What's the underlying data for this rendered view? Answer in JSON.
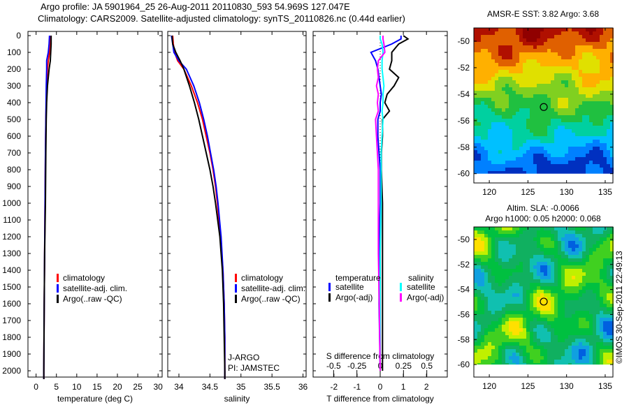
{
  "title_line1": "Argo profile: JA 5901964_25 26-Aug-2011 20110830_593 54.969S 127.047E",
  "title_line2": "Climatology: CARS2009. Satellite-adjusted climatology: synTS_20110826.nc (0.44d earlier)",
  "credit": "©IMOS 30-Sep-2011 22:49:13",
  "colors": {
    "climatology": "#ff0000",
    "satellite": "#0000ff",
    "argo": "#000000",
    "sal_satellite": "#00ffff",
    "sal_argo": "#ff00ff"
  },
  "chart_data": [
    {
      "type": "line",
      "xlabel": "temperature (deg C)",
      "ylabel": "",
      "xlim": [
        -2,
        31
      ],
      "ylim": [
        2050,
        0
      ],
      "xticks": [
        "0",
        "5",
        "10",
        "15",
        "20",
        "25",
        "30"
      ],
      "yticks": [
        "0",
        "100",
        "200",
        "300",
        "400",
        "500",
        "600",
        "700",
        "800",
        "900",
        "1000",
        "1100",
        "1200",
        "1300",
        "1400",
        "1500",
        "1600",
        "1700",
        "1800",
        "1900",
        "2000"
      ],
      "legend": [
        "climatology",
        "satellite-adj. clim.",
        "Argo(..raw -QC)"
      ],
      "depth": [
        0,
        50,
        100,
        150,
        200,
        300,
        400,
        500,
        700,
        1000,
        1300,
        1600,
        2000,
        2050
      ],
      "series": [
        {
          "name": "climatology",
          "values": [
            3.6,
            3.5,
            3.3,
            3.0,
            2.8,
            2.6,
            2.5,
            2.4,
            2.3,
            2.2,
            2.1,
            2.0,
            1.9,
            1.9
          ]
        },
        {
          "name": "satellite-adj. clim.",
          "values": [
            3.3,
            3.2,
            3.0,
            2.6,
            2.6,
            2.5,
            2.45,
            2.4,
            2.3,
            2.2,
            2.1,
            2.0,
            1.9,
            1.9
          ]
        },
        {
          "name": "Argo(..raw -QC)",
          "values": [
            3.7,
            3.7,
            3.6,
            3.5,
            3.2,
            2.8,
            2.6,
            2.5,
            2.4,
            2.3,
            2.1,
            2.0,
            1.9,
            1.9
          ]
        }
      ]
    },
    {
      "type": "line",
      "xlabel": "salinity",
      "xlim": [
        33.82,
        36.05
      ],
      "ylim": [
        2050,
        0
      ],
      "xticks": [
        "34",
        "34.5",
        "35",
        "35.5",
        "36"
      ],
      "legend": [
        "climatology",
        "satellite-adj. clim.",
        "Argo(..raw -QC)"
      ],
      "annotations": [
        "J-ARGO",
        "PI: JAMSTEC"
      ],
      "depth": [
        0,
        50,
        100,
        150,
        200,
        300,
        400,
        500,
        600,
        700,
        800,
        900,
        1000,
        1200,
        1400,
        1600,
        1800,
        2000,
        2050
      ],
      "series": [
        {
          "name": "climatology",
          "values": [
            33.9,
            33.91,
            33.93,
            33.98,
            34.08,
            34.2,
            34.3,
            34.38,
            34.44,
            34.5,
            34.55,
            34.59,
            34.62,
            34.67,
            34.71,
            34.73,
            34.74,
            34.74,
            34.74
          ]
        },
        {
          "name": "satellite-adj. clim.",
          "values": [
            33.88,
            33.9,
            33.92,
            34.0,
            34.12,
            34.24,
            34.33,
            34.4,
            34.46,
            34.51,
            34.56,
            34.6,
            34.63,
            34.68,
            34.71,
            34.73,
            34.74,
            34.74,
            34.74
          ]
        },
        {
          "name": "Argo(..raw -QC)",
          "values": [
            33.89,
            33.9,
            33.95,
            34.02,
            34.08,
            34.17,
            34.25,
            34.32,
            34.38,
            34.44,
            34.5,
            34.55,
            34.59,
            34.66,
            34.7,
            34.72,
            34.73,
            34.74,
            34.74
          ]
        }
      ]
    },
    {
      "type": "line",
      "xlabel": "T difference from climatology",
      "x2label": "S difference from climatology",
      "xlim": [
        -2.9,
        2.9
      ],
      "x2lim": [
        -0.72,
        0.72
      ],
      "ylim": [
        2050,
        0
      ],
      "xticks": [
        "-2",
        "-1",
        "0",
        "1",
        "2"
      ],
      "x2ticks": [
        "-0.5",
        "-0.25",
        "0",
        "0.25",
        "0.5"
      ],
      "legend_t_title": "temperature",
      "legend_s_title": "salinity",
      "legend": [
        "satellite",
        "Argo(-adj)",
        "satellite",
        "Argo(-adj)"
      ],
      "depth": [
        0,
        20,
        50,
        100,
        150,
        200,
        250,
        300,
        350,
        400,
        450,
        500,
        600,
        700,
        800,
        1000,
        1300,
        1600,
        2000
      ],
      "series": [
        {
          "name": "T satellite",
          "axis": "T",
          "values": [
            0.9,
            0.9,
            0.5,
            -0.4,
            -0.2,
            -0.1,
            -0.05,
            0,
            0.05,
            0,
            0,
            -0.1,
            -0.1,
            -0.05,
            0,
            0,
            -0.05,
            -0.05,
            0
          ]
        },
        {
          "name": "T Argo(-adj)",
          "axis": "T",
          "values": [
            1.0,
            1.2,
            0.8,
            0.5,
            0.5,
            0.4,
            0.8,
            0.6,
            0.3,
            0.2,
            0.4,
            0.1,
            0.1,
            0.05,
            0.05,
            0.1,
            0.1,
            0.1,
            0.1
          ]
        },
        {
          "name": "S satellite",
          "axis": "S",
          "values": [
            0,
            0,
            0.02,
            0.03,
            0.02,
            0.02,
            0.03,
            0.04,
            0.03,
            0.03,
            0.02,
            0.03,
            0.02,
            0.01,
            0.01,
            0.01,
            0,
            0,
            0
          ]
        },
        {
          "name": "S Argo(-adj)",
          "axis": "S",
          "values": [
            0.03,
            0.03,
            0.04,
            0.05,
            -0.02,
            -0.03,
            -0.02,
            -0.04,
            -0.02,
            -0.03,
            -0.02,
            -0.05,
            -0.04,
            -0.03,
            -0.02,
            -0.02,
            -0.02,
            -0.01,
            0
          ]
        }
      ]
    },
    {
      "type": "heatmap",
      "title": "AMSR-E SST: 3.82 Argo: 3.68",
      "xticks": [
        "120",
        "125",
        "130",
        "135"
      ],
      "yticks": [
        "-50",
        "-52",
        "-54",
        "-56",
        "-58",
        "-60"
      ],
      "xlim": [
        118,
        136
      ],
      "ylim": [
        -60.7,
        -49
      ],
      "marker": {
        "lon": 127.047,
        "lat": -54.969
      }
    },
    {
      "type": "heatmap",
      "title": "Altim. SLA: -0.0066",
      "subtitle": "Argo h1000: 0.05 h2000: 0.068",
      "xticks": [
        "120",
        "125",
        "130",
        "135"
      ],
      "yticks": [
        "-50",
        "-52",
        "-54",
        "-56",
        "-58",
        "-60"
      ],
      "xlim": [
        118,
        136
      ],
      "ylim": [
        -61,
        -49
      ],
      "marker": {
        "lon": 127.047,
        "lat": -54.969
      }
    }
  ]
}
